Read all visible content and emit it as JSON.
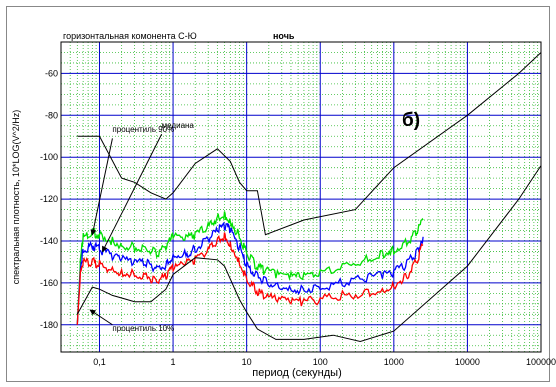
{
  "chart_data": {
    "type": "line",
    "title": "горизонтальная комонента С-Ю",
    "subtitle": "ночь",
    "panel_label": "б)",
    "xlabel": "период (секунды)",
    "ylabel": "спектральная плотность, 10*LOG(V^2/Hz)",
    "xscale": "log",
    "xlim": [
      0.03,
      100000
    ],
    "ylim": [
      -193,
      -45
    ],
    "x_ticks": [
      {
        "v": 0.1,
        "label": "0,1"
      },
      {
        "v": 1,
        "label": "1"
      },
      {
        "v": 10,
        "label": "10"
      },
      {
        "v": 100,
        "label": "100"
      },
      {
        "v": 1000,
        "label": "1000"
      },
      {
        "v": 10000,
        "label": "10000"
      },
      {
        "v": 100000,
        "label": "100000"
      }
    ],
    "y_ticks": [
      {
        "v": -60,
        "label": "-60"
      },
      {
        "v": -80,
        "label": "-80"
      },
      {
        "v": -100,
        "label": "-100"
      },
      {
        "v": -120,
        "label": "-120"
      },
      {
        "v": -140,
        "label": "-140"
      },
      {
        "v": -160,
        "label": "-160"
      },
      {
        "v": -180,
        "label": "-180"
      }
    ],
    "grid": true,
    "annotations": [
      {
        "text": "процентиль 90%",
        "x": 0.15,
        "y": -88
      },
      {
        "text": "медиана",
        "x": 0.7,
        "y": -86
      },
      {
        "text": "процентиль 10%",
        "x": 0.15,
        "y": -183
      }
    ],
    "series": [
      {
        "color": "#00e000",
        "points": [
          [
            0.05,
            -180
          ],
          [
            0.055,
            -150
          ],
          [
            0.06,
            -138
          ],
          [
            0.08,
            -136
          ],
          [
            0.1,
            -137
          ],
          [
            0.15,
            -140
          ],
          [
            0.2,
            -142
          ],
          [
            0.3,
            -143
          ],
          [
            0.45,
            -144
          ],
          [
            0.6,
            -146
          ],
          [
            0.8,
            -143
          ],
          [
            1,
            -138
          ],
          [
            1.5,
            -139
          ],
          [
            2,
            -137
          ],
          [
            3,
            -133
          ],
          [
            4,
            -129
          ],
          [
            5,
            -128
          ],
          [
            6,
            -130
          ],
          [
            8,
            -138
          ],
          [
            10,
            -146
          ],
          [
            13,
            -151
          ],
          [
            17,
            -154
          ],
          [
            25,
            -156
          ],
          [
            40,
            -157
          ],
          [
            60,
            -157
          ],
          [
            100,
            -155
          ],
          [
            200,
            -152
          ],
          [
            400,
            -149
          ],
          [
            700,
            -146
          ],
          [
            1000,
            -144
          ],
          [
            1500,
            -141
          ],
          [
            2000,
            -136
          ],
          [
            2500,
            -130
          ]
        ]
      },
      {
        "color": "#0000ff",
        "points": [
          [
            0.05,
            -180
          ],
          [
            0.055,
            -153
          ],
          [
            0.06,
            -144
          ],
          [
            0.08,
            -142
          ],
          [
            0.1,
            -144
          ],
          [
            0.15,
            -147
          ],
          [
            0.2,
            -149
          ],
          [
            0.3,
            -150
          ],
          [
            0.45,
            -151
          ],
          [
            0.6,
            -153
          ],
          [
            0.8,
            -152
          ],
          [
            1,
            -147
          ],
          [
            1.5,
            -146
          ],
          [
            2,
            -144
          ],
          [
            3,
            -139
          ],
          [
            4,
            -135
          ],
          [
            5,
            -133
          ],
          [
            6,
            -135
          ],
          [
            8,
            -143
          ],
          [
            10,
            -152
          ],
          [
            13,
            -156
          ],
          [
            17,
            -159
          ],
          [
            25,
            -161
          ],
          [
            40,
            -163
          ],
          [
            60,
            -163
          ],
          [
            100,
            -162
          ],
          [
            200,
            -160
          ],
          [
            400,
            -158
          ],
          [
            700,
            -156
          ],
          [
            1000,
            -155
          ],
          [
            1500,
            -151
          ],
          [
            2000,
            -146
          ],
          [
            2500,
            -138
          ]
        ]
      },
      {
        "color": "#ff0000",
        "points": [
          [
            0.05,
            -180
          ],
          [
            0.055,
            -156
          ],
          [
            0.06,
            -150
          ],
          [
            0.08,
            -150
          ],
          [
            0.1,
            -151
          ],
          [
            0.15,
            -154
          ],
          [
            0.2,
            -155
          ],
          [
            0.3,
            -156
          ],
          [
            0.45,
            -157
          ],
          [
            0.6,
            -159
          ],
          [
            0.8,
            -157
          ],
          [
            1,
            -153
          ],
          [
            1.5,
            -151
          ],
          [
            2,
            -149
          ],
          [
            3,
            -144
          ],
          [
            4,
            -140
          ],
          [
            5,
            -138
          ],
          [
            6,
            -141
          ],
          [
            8,
            -150
          ],
          [
            10,
            -158
          ],
          [
            13,
            -163
          ],
          [
            17,
            -166
          ],
          [
            25,
            -168
          ],
          [
            40,
            -169
          ],
          [
            60,
            -169
          ],
          [
            100,
            -168
          ],
          [
            200,
            -166
          ],
          [
            400,
            -165
          ],
          [
            700,
            -163
          ],
          [
            1000,
            -161
          ],
          [
            1500,
            -157
          ],
          [
            2000,
            -150
          ],
          [
            2500,
            -142
          ]
        ]
      },
      {
        "color": "#000000",
        "points": [
          [
            0.05,
            -90
          ],
          [
            0.1,
            -90
          ],
          [
            0.2,
            -110
          ],
          [
            0.3,
            -112
          ],
          [
            0.5,
            -117
          ],
          [
            0.8,
            -120
          ],
          [
            1,
            -117
          ],
          [
            2,
            -103
          ],
          [
            4,
            -96
          ],
          [
            6,
            -102
          ],
          [
            8,
            -112
          ],
          [
            10,
            -116
          ],
          [
            14,
            -116
          ],
          [
            18,
            -137
          ],
          [
            60,
            -130
          ],
          [
            300,
            -125
          ],
          [
            1000,
            -105
          ],
          [
            10000,
            -80
          ],
          [
            50000,
            -60
          ],
          [
            100000,
            -50
          ]
        ]
      },
      {
        "color": "#000000",
        "points": [
          [
            0.05,
            -175
          ],
          [
            0.08,
            -162
          ],
          [
            0.1,
            -163
          ],
          [
            0.15,
            -166
          ],
          [
            0.3,
            -169
          ],
          [
            0.5,
            -169
          ],
          [
            0.8,
            -163
          ],
          [
            1,
            -156
          ],
          [
            2,
            -148
          ],
          [
            4,
            -149
          ],
          [
            5,
            -152
          ],
          [
            8,
            -168
          ],
          [
            10,
            -174
          ],
          [
            14,
            -182
          ],
          [
            25,
            -187
          ],
          [
            60,
            -187
          ],
          [
            150,
            -185
          ],
          [
            350,
            -188
          ],
          [
            1000,
            -183
          ],
          [
            10000,
            -152
          ],
          [
            50000,
            -120
          ],
          [
            100000,
            -104
          ]
        ]
      }
    ]
  }
}
